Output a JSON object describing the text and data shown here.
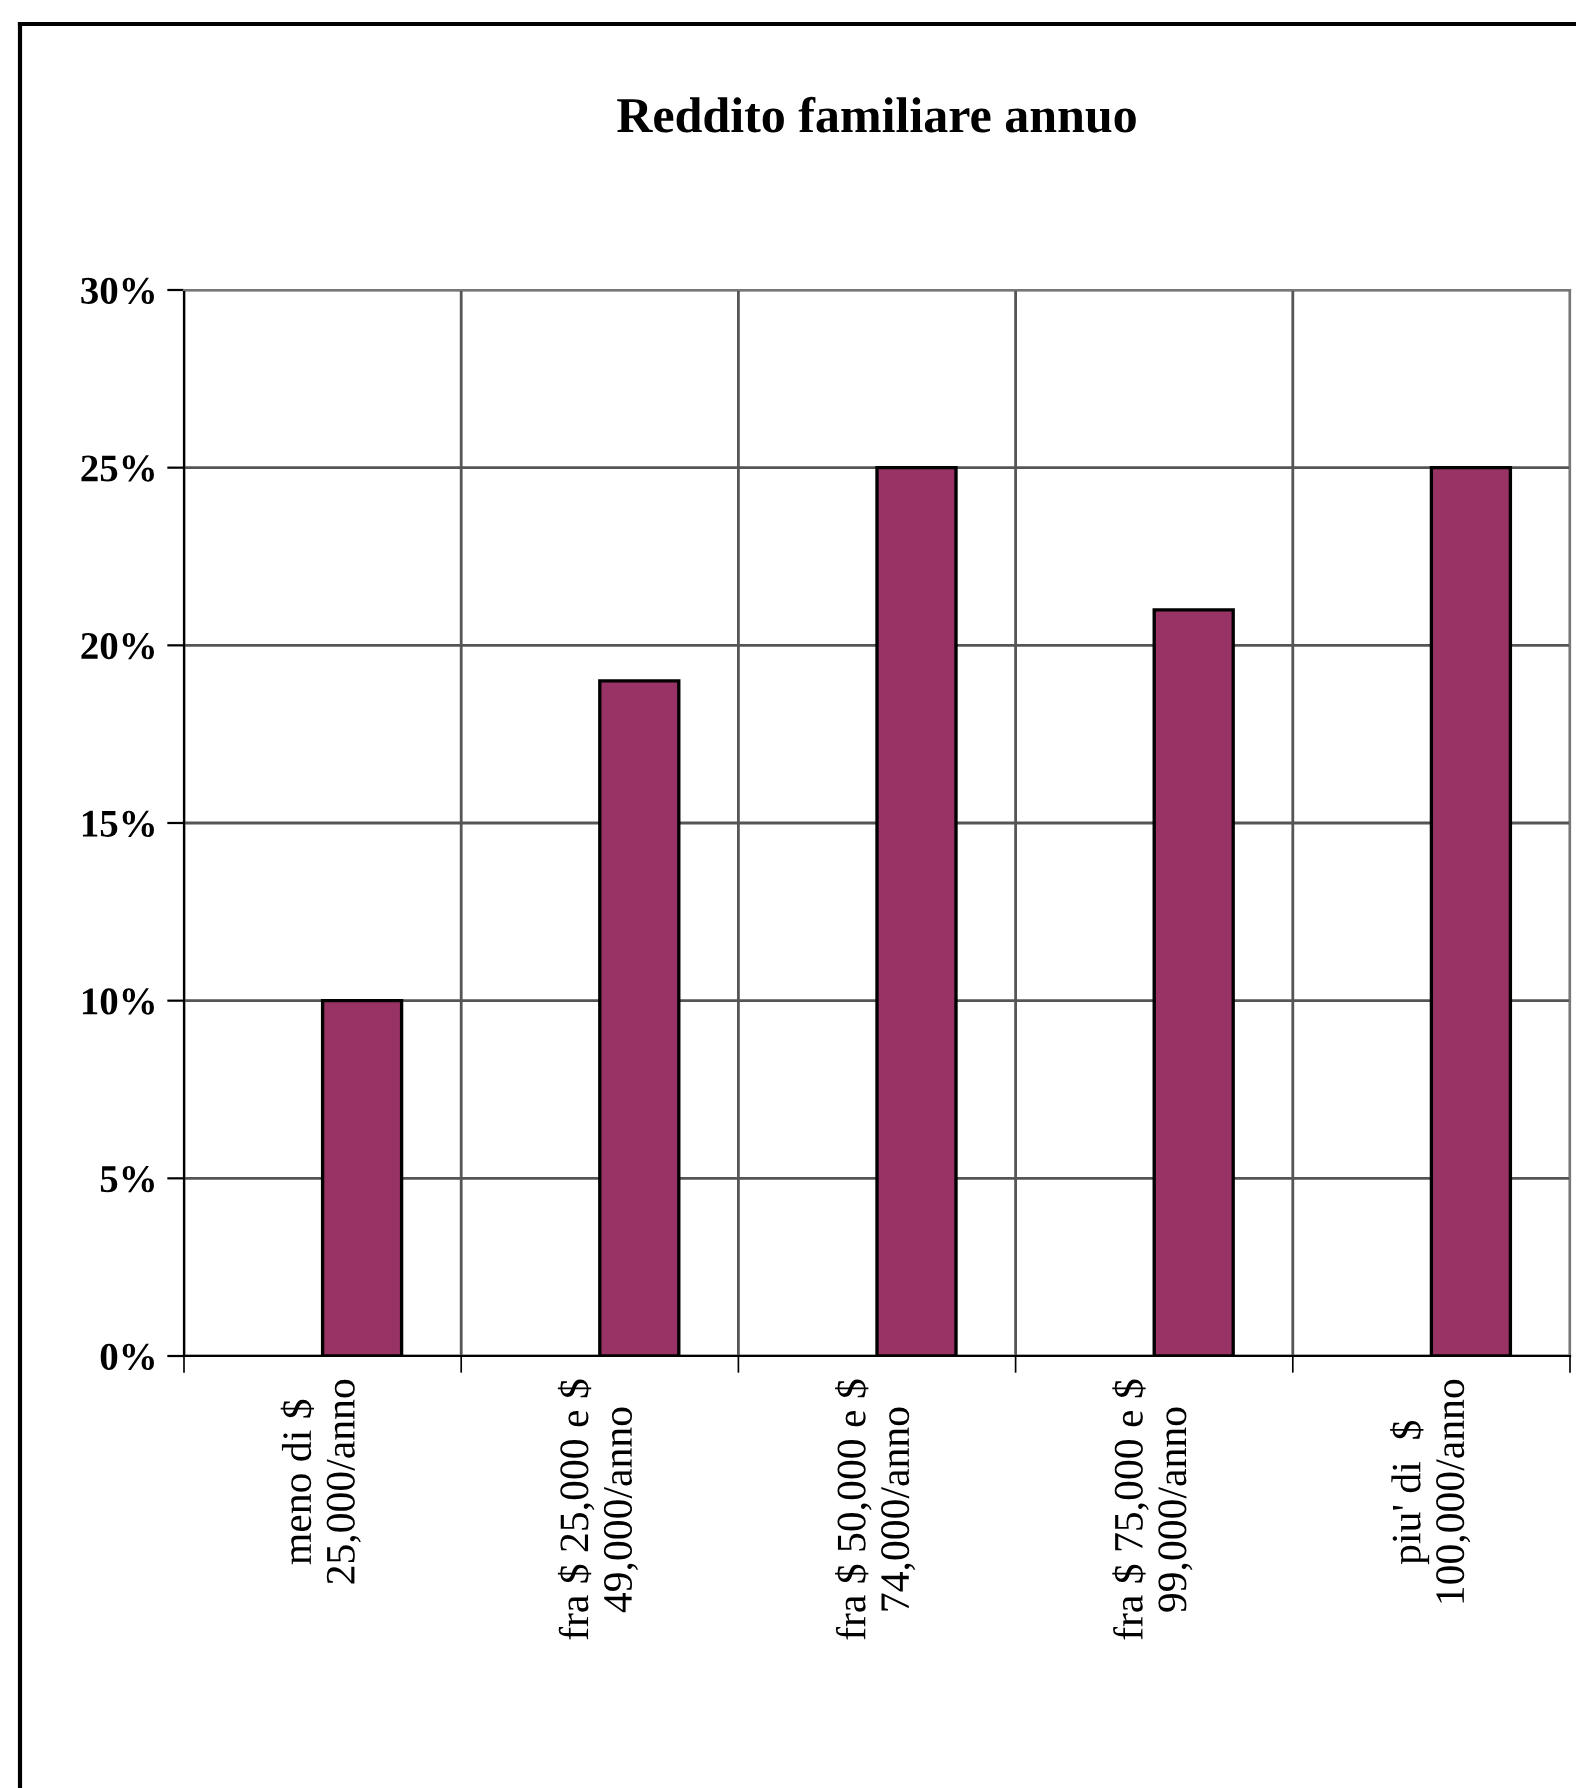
{
  "chart_data": {
    "type": "bar",
    "title": "Reddito familiare annuo",
    "categories": [
      "meno di $\n25,000/anno",
      "fra $ 25,000 e $\n49,000/anno",
      "fra $ 50,000 e $\n74,000/anno",
      "fra $ 75,000 e $\n99,000/anno",
      "piu' di  $\n100,000/anno"
    ],
    "series": [
      {
        "values": [
          null,
          null,
          null,
          null,
          null
        ]
      },
      {
        "color": "#993366",
        "values": [
          10,
          19,
          25,
          21,
          25
        ]
      }
    ],
    "ylim": [
      0,
      30
    ],
    "yticks": [
      {
        "value": 0,
        "label": "0%"
      },
      {
        "value": 5,
        "label": "5%"
      },
      {
        "value": 10,
        "label": "10%"
      },
      {
        "value": 15,
        "label": "15%"
      },
      {
        "value": 20,
        "label": "20%"
      },
      {
        "value": 25,
        "label": "25%"
      },
      {
        "value": 30,
        "label": "30%"
      }
    ],
    "grid": true
  }
}
